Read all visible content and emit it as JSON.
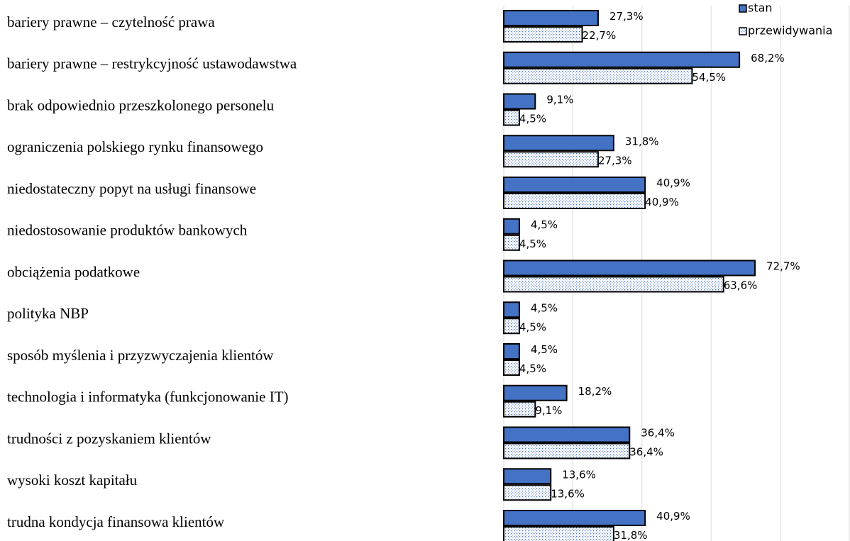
{
  "chart_data": {
    "type": "bar",
    "orientation": "horizontal",
    "categories": [
      "bariery prawne – czytelność prawa",
      "bariery prawne – restrykcyjność ustawodawstwa",
      "brak odpowiednio przeszkolonego personelu",
      "ograniczenia polskiego rynku finansowego",
      "niedostateczny popyt na usługi finansowe",
      "niedostosowanie produktów bankowych",
      "obciążenia podatkowe",
      "polityka NBP",
      "sposób myślenia i przyzwyczajenia klientów",
      "technologia i informatyka (funkcjonowanie IT)",
      "trudności z pozyskaniem klientów",
      "wysoki koszt kapitału",
      "trudna kondycja finansowa klientów"
    ],
    "series": [
      {
        "name": "stan",
        "color": "#4472c4",
        "pattern": "solid",
        "values": [
          27.3,
          68.2,
          9.1,
          31.8,
          40.9,
          4.5,
          72.7,
          4.5,
          4.5,
          18.2,
          36.4,
          13.6,
          40.9
        ],
        "value_labels": [
          "27,3%",
          "68,2%",
          "9,1%",
          "31,8%",
          "40,9%",
          "4,5%",
          "72,7%",
          "4,5%",
          "4,5%",
          "18,2%",
          "36,4%",
          "13,6%",
          "40,9%"
        ]
      },
      {
        "name": "przewidywania",
        "color": "#4472c4",
        "pattern": "dots",
        "values": [
          22.7,
          54.5,
          4.5,
          27.3,
          40.9,
          4.5,
          63.6,
          4.5,
          4.5,
          9.1,
          36.4,
          13.6,
          31.8
        ],
        "value_labels": [
          "22,7%",
          "54,5%",
          "4,5%",
          "27,3%",
          "40,9%",
          "4,5%",
          "63,6%",
          "4,5%",
          "4,5%",
          "9,1%",
          "36,4%",
          "13,6%",
          "31,8%"
        ]
      }
    ],
    "xlim": [
      0,
      100
    ],
    "xticks": [
      0,
      20,
      40,
      60,
      80,
      100
    ],
    "grid": true,
    "legend": "top-right"
  }
}
